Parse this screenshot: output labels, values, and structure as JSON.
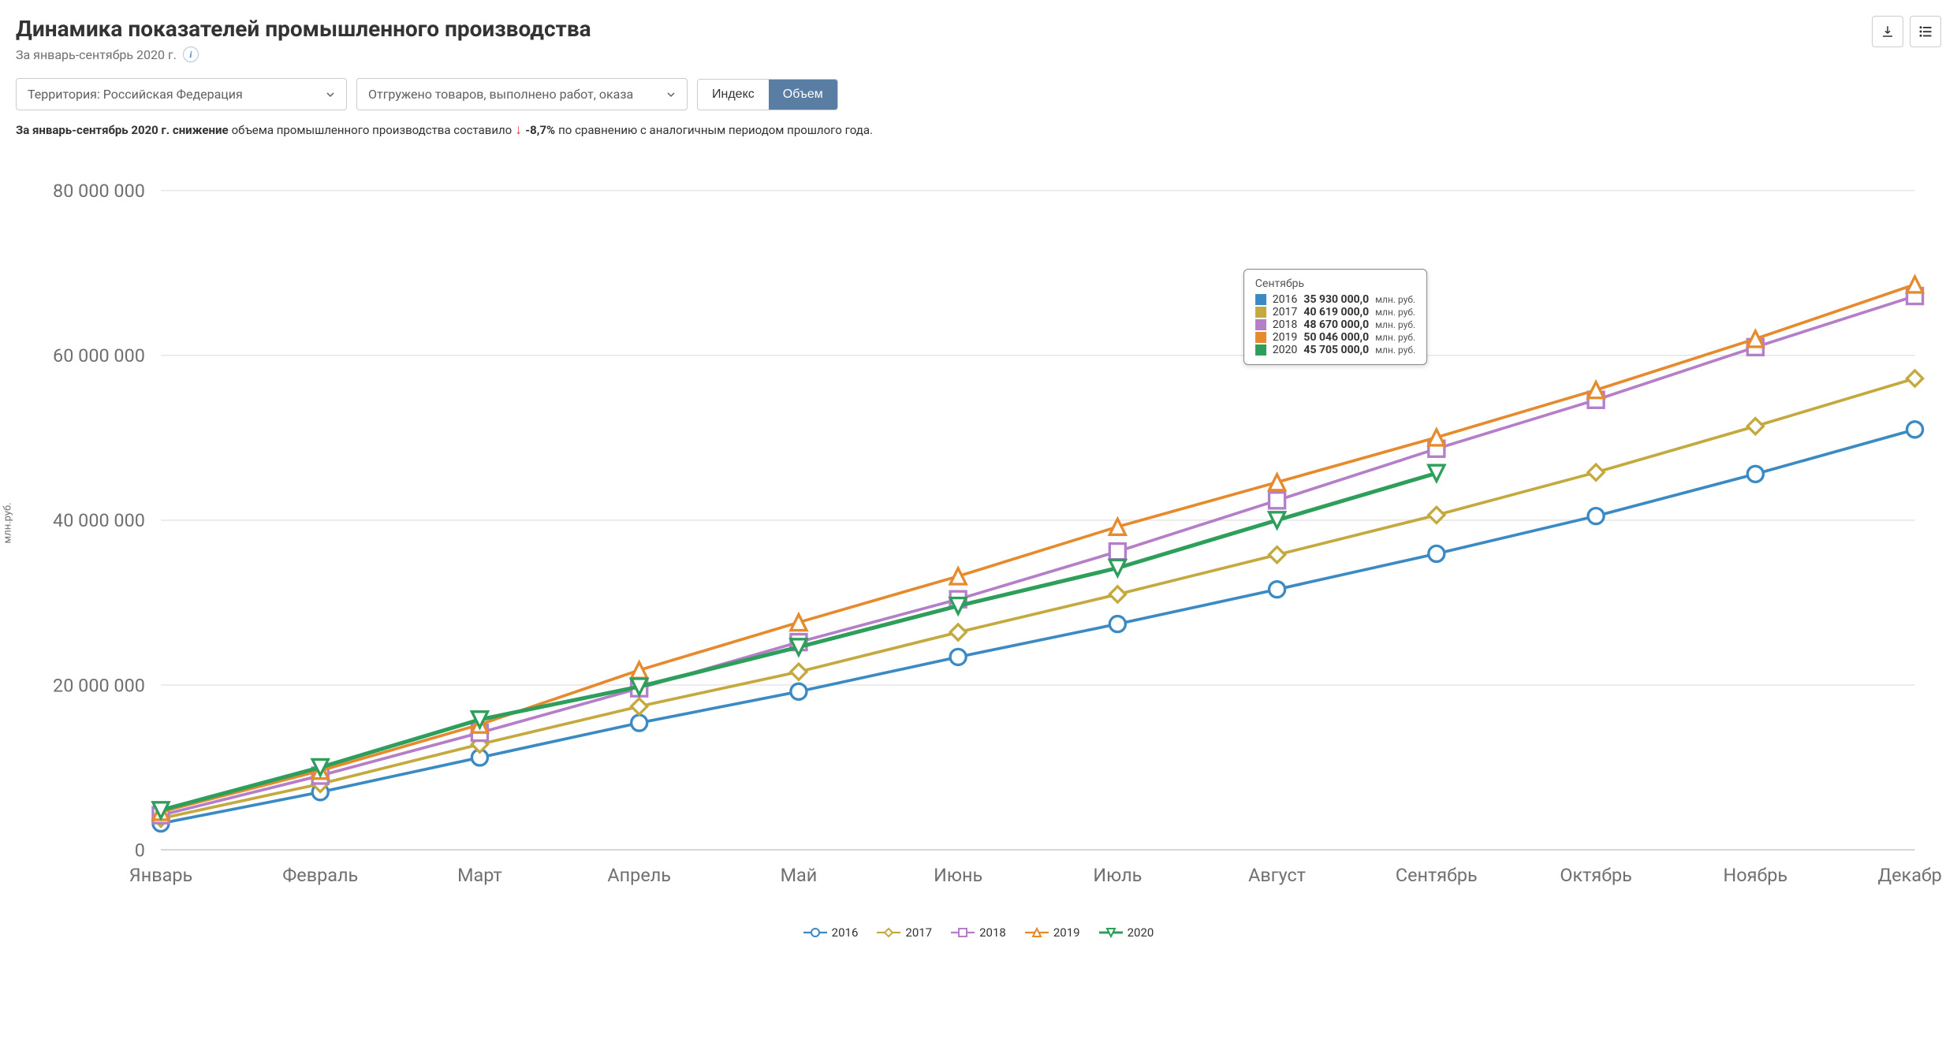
{
  "header": {
    "title": "Динамика показателей промышленного производства",
    "subtitle": "За январь-сентябрь 2020 г."
  },
  "controls": {
    "territory_label": "Территория: Российская  Федерация",
    "metric_label": "Отгружено товаров, выполнено работ, оказа",
    "toggle_index": "Индекс",
    "toggle_volume": "Объем"
  },
  "summary": {
    "prefix_bold": "За январь-сентябрь 2020 г. снижение",
    "mid": " объема промышленного производства составило ",
    "pct": "-8,7%",
    "suffix": " по сравнению с аналогичным периодом прошлого года."
  },
  "chart": {
    "type": "line",
    "ylabel": "млн.руб.",
    "background_color": "#ffffff",
    "grid_color": "#e8e8e8",
    "axis_color": "#d0d0d0",
    "tick_font_size": 14,
    "tick_color": "#707070",
    "ylim": [
      0,
      80000000
    ],
    "ytick_step": 20000000,
    "yticks": [
      "0",
      "20 000 000",
      "40 000 000",
      "60 000 000",
      "80 000 000"
    ],
    "categories": [
      "Январь",
      "Февраль",
      "Март",
      "Апрель",
      "Май",
      "Июнь",
      "Июль",
      "Август",
      "Сентябрь",
      "Октябрь",
      "Ноябрь",
      "Декабрь"
    ],
    "marker_size": 6,
    "line_width": 2.2,
    "series": [
      {
        "name": "2016",
        "color": "#3b8ac4",
        "marker": "circle",
        "fill": "#ffffff",
        "values": [
          3200000,
          7000000,
          11200000,
          15400000,
          19200000,
          23400000,
          27400000,
          31600000,
          35930000,
          40500000,
          45600000,
          51000000
        ]
      },
      {
        "name": "2017",
        "color": "#c3a93e",
        "marker": "diamond",
        "fill": "#ffffff",
        "values": [
          3800000,
          8000000,
          12800000,
          17400000,
          21600000,
          26400000,
          31000000,
          35800000,
          40619000,
          45800000,
          51400000,
          57200000
        ]
      },
      {
        "name": "2018",
        "color": "#b47ec8",
        "marker": "square",
        "fill": "#ffffff",
        "values": [
          4200000,
          9000000,
          14200000,
          19600000,
          25200000,
          30400000,
          36200000,
          42400000,
          48670000,
          54600000,
          61000000,
          67200000
        ]
      },
      {
        "name": "2019",
        "color": "#e68a2e",
        "marker": "triangle",
        "fill": "#ffffff",
        "values": [
          4600000,
          9600000,
          15200000,
          21800000,
          27600000,
          33200000,
          39200000,
          44600000,
          50046000,
          55800000,
          62000000,
          68600000
        ]
      },
      {
        "name": "2020",
        "color": "#2e9e5b",
        "marker": "triangle-down",
        "fill": "#ffffff",
        "width": 3,
        "values": [
          4800000,
          10000000,
          15800000,
          19800000,
          24600000,
          29600000,
          34200000,
          40000000,
          45705000
        ]
      }
    ],
    "tooltip": {
      "month_index": 8,
      "title": "Сентябрь",
      "unit": "млн. руб.",
      "rows": [
        {
          "year": "2016",
          "value": "35 930 000,0",
          "color": "#3b8ac4"
        },
        {
          "year": "2017",
          "value": "40 619 000,0",
          "color": "#c3a93e"
        },
        {
          "year": "2018",
          "value": "48 670 000,0",
          "color": "#b47ec8"
        },
        {
          "year": "2019",
          "value": "50 046 000,0",
          "color": "#e68a2e"
        },
        {
          "year": "2020",
          "value": "45 705 000,0",
          "color": "#2e9e5b"
        }
      ]
    }
  }
}
